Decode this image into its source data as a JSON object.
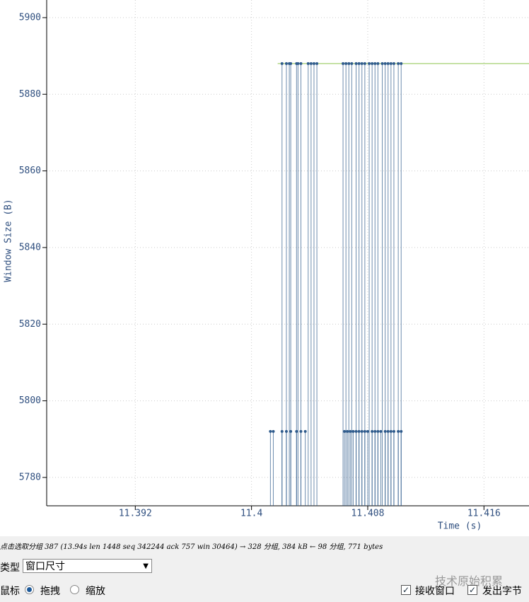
{
  "chart_data": {
    "type": "scatter",
    "y_label": "Window Size (B)",
    "x_label": "Time (s)",
    "xlim": [
      11.3859,
      11.4191
    ],
    "ylim": [
      5772.6,
      5904.6
    ],
    "xticks": [
      11.392,
      11.4,
      11.408,
      11.416
    ],
    "yticks": [
      5780,
      5800,
      5820,
      5840,
      5860,
      5880,
      5900
    ],
    "grid": true,
    "series": [
      {
        "name": "接收窗口",
        "color": "#8cc34a",
        "kind": "line",
        "x": [
          11.4018,
          11.4191
        ],
        "values": [
          5888,
          5888
        ]
      },
      {
        "name": "发出字节",
        "color": "#2f5b8c",
        "kind": "points",
        "x": [
          11.4021,
          11.4024,
          11.4026,
          11.4027,
          11.4031,
          11.4032,
          11.4034,
          11.4039,
          11.4041,
          11.4043,
          11.4045,
          11.4063,
          11.4065,
          11.4067,
          11.4069,
          11.4072,
          11.4074,
          11.4076,
          11.4078,
          11.4081,
          11.4083,
          11.4085,
          11.4087,
          11.409,
          11.4092,
          11.4094,
          11.4096,
          11.4098,
          11.4101,
          11.4103,
          11.4013,
          11.4015,
          11.4021,
          11.4024,
          11.4027,
          11.4031,
          11.4034,
          11.4037,
          11.4064,
          11.4066,
          11.4068,
          11.407,
          11.4072,
          11.4074,
          11.4076,
          11.4078,
          11.408,
          11.4083,
          11.4085,
          11.4087,
          11.4089,
          11.4092,
          11.4094,
          11.4096,
          11.4098,
          11.4101,
          11.4103
        ],
        "values": [
          5888,
          5888,
          5888,
          5888,
          5888,
          5888,
          5888,
          5888,
          5888,
          5888,
          5888,
          5888,
          5888,
          5888,
          5888,
          5888,
          5888,
          5888,
          5888,
          5888,
          5888,
          5888,
          5888,
          5888,
          5888,
          5888,
          5888,
          5888,
          5888,
          5888,
          5792,
          5792,
          5792,
          5792,
          5792,
          5792,
          5792,
          5792,
          5792,
          5792,
          5792,
          5792,
          5792,
          5792,
          5792,
          5792,
          5792,
          5792,
          5792,
          5792,
          5792,
          5792,
          5792,
          5792,
          5792,
          5792,
          5792
        ]
      }
    ]
  },
  "ui": {
    "status": "点击选取分组 387 (13.94s len 1448 seq 342244 ack 757 win 30464) → 328 分组, 384 kB ← 98 分组, 771 bytes",
    "type_label": "类型",
    "type_value": "窗口尺寸",
    "mouse_label": "鼠标",
    "drag": "拖拽",
    "zoom": "缩放",
    "watermark": "技术原始积累"
  }
}
